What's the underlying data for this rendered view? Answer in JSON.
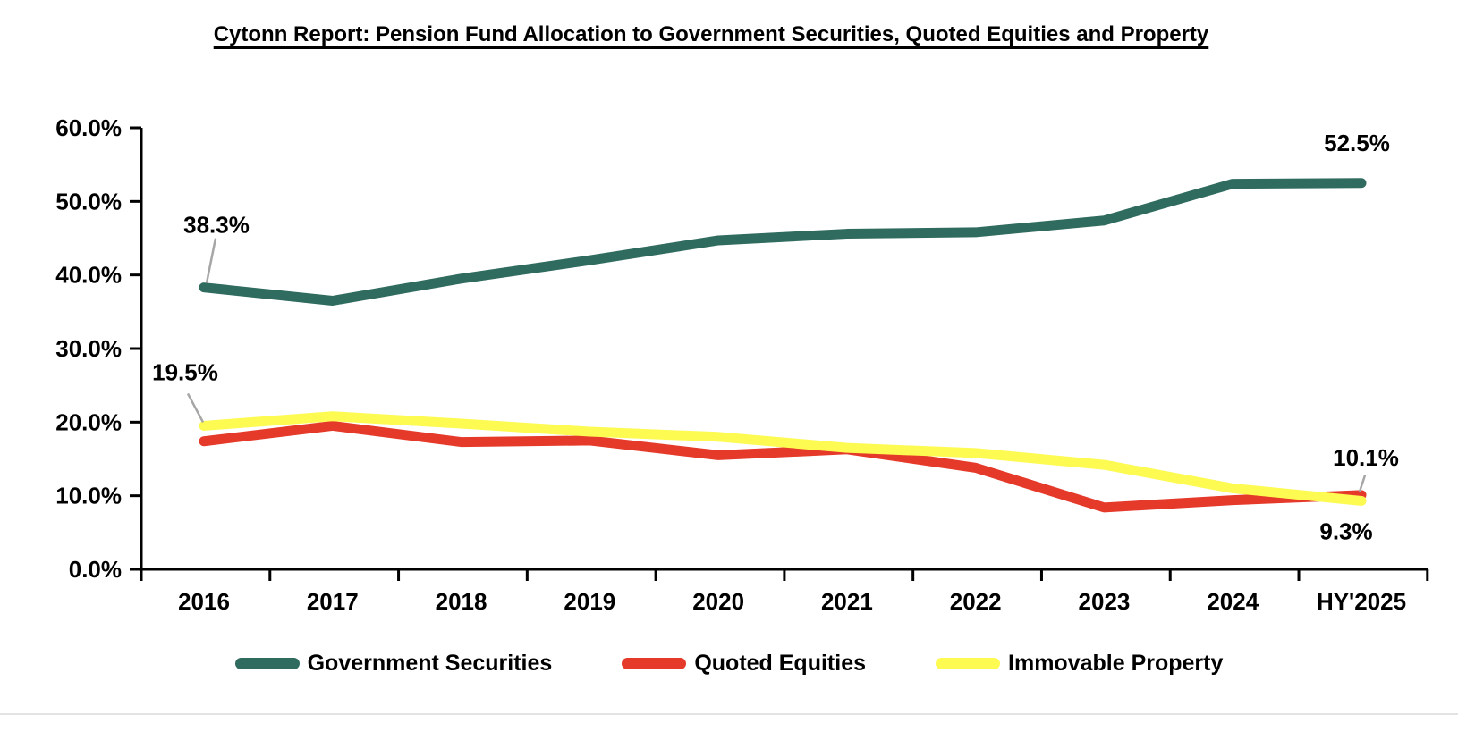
{
  "page": {
    "background": "#ffffff"
  },
  "chart_data": {
    "type": "line",
    "title": "Cytonn Report: Pension Fund Allocation to Government Securities, Quoted Equities and Property",
    "categories": [
      "2016",
      "2017",
      "2018",
      "2019",
      "2020",
      "2021",
      "2022",
      "2023",
      "2024",
      "HY'2025"
    ],
    "y_axis": {
      "min": 0,
      "max": 60,
      "step": 10,
      "tick_labels": [
        "0.0%",
        "10.0%",
        "20.0%",
        "30.0%",
        "40.0%",
        "50.0%",
        "60.0%"
      ]
    },
    "grid": false,
    "legend_position": "bottom",
    "series": [
      {
        "name": "Government Securities",
        "color": "#2f6b5f",
        "values": [
          38.3,
          36.5,
          39.5,
          42.0,
          44.7,
          45.6,
          45.8,
          47.4,
          52.4,
          52.5
        ]
      },
      {
        "name": "Quoted Equities",
        "color": "#e5392a",
        "values": [
          17.4,
          19.5,
          17.3,
          17.5,
          15.5,
          16.3,
          13.8,
          8.4,
          9.4,
          10.1
        ]
      },
      {
        "name": "Immovable Property",
        "color": "#fdfa52",
        "values": [
          19.5,
          20.8,
          19.8,
          18.7,
          18.0,
          16.5,
          15.8,
          14.2,
          11.0,
          9.3
        ]
      }
    ],
    "annotations": [
      {
        "series": 0,
        "point": 0,
        "text": "38.3%"
      },
      {
        "series": 2,
        "point": 0,
        "text": "19.5%"
      },
      {
        "series": 0,
        "point": 9,
        "text": "52.5%"
      },
      {
        "series": 1,
        "point": 9,
        "text": "10.1%"
      },
      {
        "series": 2,
        "point": 9,
        "text": "9.3%"
      }
    ],
    "annotation_leader_color": "#a6a6a6"
  }
}
